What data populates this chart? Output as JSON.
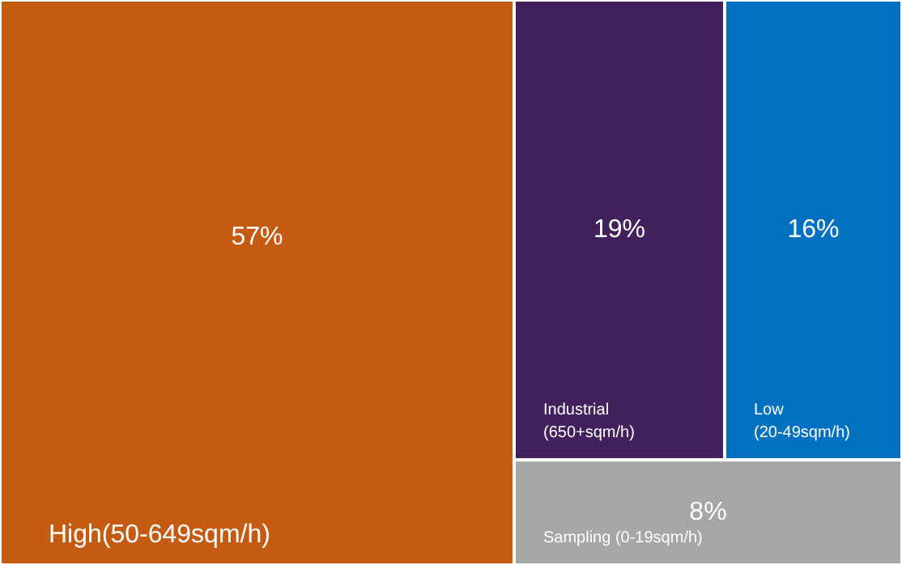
{
  "chart_data": {
    "type": "other",
    "categories": [
      "High(50-649sqm/h)",
      "Industrial\n(650+sqm/h)",
      "Low\n(20-49sqm/h)",
      "Sampling (0-19sqm/h)"
    ],
    "values": [
      57,
      19,
      16,
      8
    ],
    "value_labels": [
      "57%",
      "19%",
      "16%",
      "8%"
    ],
    "colors": [
      "#c55a11",
      "#43205e",
      "#0070c0",
      "#a6a6a6"
    ]
  }
}
